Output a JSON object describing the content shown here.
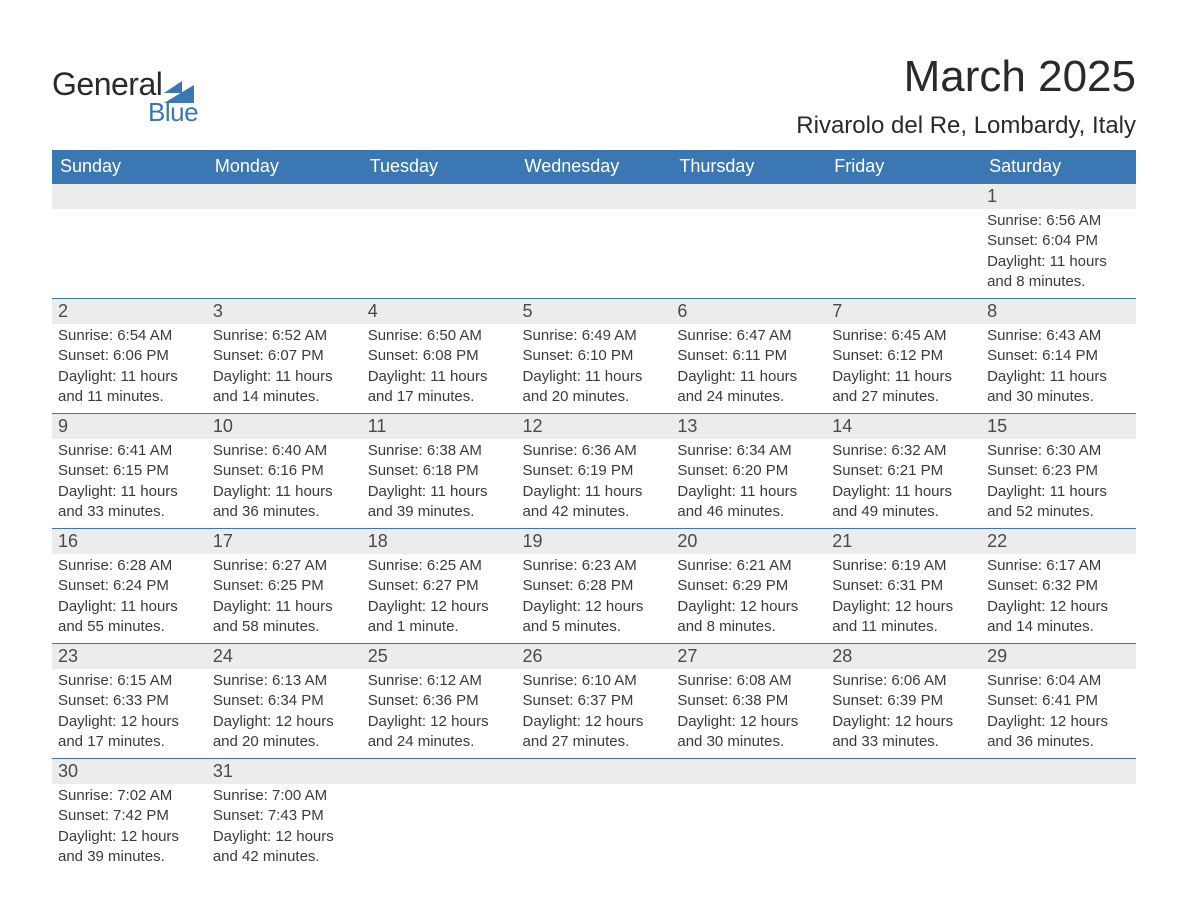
{
  "brand": {
    "word1": "General",
    "word2": "Blue",
    "tri_color": "#3a77b3"
  },
  "title": "March 2025",
  "location": "Rivarolo del Re, Lombardy, Italy",
  "colors": {
    "header_bg": "#3a77b3",
    "header_text": "#ffffff",
    "daynum_bg": "#ececec",
    "row_divider": "#3a77b3",
    "text": "#3a3a3a",
    "page_bg": "#ffffff"
  },
  "fonts": {
    "month_title_pt": 44,
    "location_pt": 24,
    "weekday_pt": 18,
    "daynum_pt": 18,
    "cell_pt": 15,
    "family": "Arial"
  },
  "weekdays": [
    "Sunday",
    "Monday",
    "Tuesday",
    "Wednesday",
    "Thursday",
    "Friday",
    "Saturday"
  ],
  "weeks": [
    [
      null,
      null,
      null,
      null,
      null,
      null,
      {
        "n": "1",
        "sunrise": "Sunrise: 6:56 AM",
        "sunset": "Sunset: 6:04 PM",
        "daylight": "Daylight: 11 hours and 8 minutes."
      }
    ],
    [
      {
        "n": "2",
        "sunrise": "Sunrise: 6:54 AM",
        "sunset": "Sunset: 6:06 PM",
        "daylight": "Daylight: 11 hours and 11 minutes."
      },
      {
        "n": "3",
        "sunrise": "Sunrise: 6:52 AM",
        "sunset": "Sunset: 6:07 PM",
        "daylight": "Daylight: 11 hours and 14 minutes."
      },
      {
        "n": "4",
        "sunrise": "Sunrise: 6:50 AM",
        "sunset": "Sunset: 6:08 PM",
        "daylight": "Daylight: 11 hours and 17 minutes."
      },
      {
        "n": "5",
        "sunrise": "Sunrise: 6:49 AM",
        "sunset": "Sunset: 6:10 PM",
        "daylight": "Daylight: 11 hours and 20 minutes."
      },
      {
        "n": "6",
        "sunrise": "Sunrise: 6:47 AM",
        "sunset": "Sunset: 6:11 PM",
        "daylight": "Daylight: 11 hours and 24 minutes."
      },
      {
        "n": "7",
        "sunrise": "Sunrise: 6:45 AM",
        "sunset": "Sunset: 6:12 PM",
        "daylight": "Daylight: 11 hours and 27 minutes."
      },
      {
        "n": "8",
        "sunrise": "Sunrise: 6:43 AM",
        "sunset": "Sunset: 6:14 PM",
        "daylight": "Daylight: 11 hours and 30 minutes."
      }
    ],
    [
      {
        "n": "9",
        "sunrise": "Sunrise: 6:41 AM",
        "sunset": "Sunset: 6:15 PM",
        "daylight": "Daylight: 11 hours and 33 minutes."
      },
      {
        "n": "10",
        "sunrise": "Sunrise: 6:40 AM",
        "sunset": "Sunset: 6:16 PM",
        "daylight": "Daylight: 11 hours and 36 minutes."
      },
      {
        "n": "11",
        "sunrise": "Sunrise: 6:38 AM",
        "sunset": "Sunset: 6:18 PM",
        "daylight": "Daylight: 11 hours and 39 minutes."
      },
      {
        "n": "12",
        "sunrise": "Sunrise: 6:36 AM",
        "sunset": "Sunset: 6:19 PM",
        "daylight": "Daylight: 11 hours and 42 minutes."
      },
      {
        "n": "13",
        "sunrise": "Sunrise: 6:34 AM",
        "sunset": "Sunset: 6:20 PM",
        "daylight": "Daylight: 11 hours and 46 minutes."
      },
      {
        "n": "14",
        "sunrise": "Sunrise: 6:32 AM",
        "sunset": "Sunset: 6:21 PM",
        "daylight": "Daylight: 11 hours and 49 minutes."
      },
      {
        "n": "15",
        "sunrise": "Sunrise: 6:30 AM",
        "sunset": "Sunset: 6:23 PM",
        "daylight": "Daylight: 11 hours and 52 minutes."
      }
    ],
    [
      {
        "n": "16",
        "sunrise": "Sunrise: 6:28 AM",
        "sunset": "Sunset: 6:24 PM",
        "daylight": "Daylight: 11 hours and 55 minutes."
      },
      {
        "n": "17",
        "sunrise": "Sunrise: 6:27 AM",
        "sunset": "Sunset: 6:25 PM",
        "daylight": "Daylight: 11 hours and 58 minutes."
      },
      {
        "n": "18",
        "sunrise": "Sunrise: 6:25 AM",
        "sunset": "Sunset: 6:27 PM",
        "daylight": "Daylight: 12 hours and 1 minute."
      },
      {
        "n": "19",
        "sunrise": "Sunrise: 6:23 AM",
        "sunset": "Sunset: 6:28 PM",
        "daylight": "Daylight: 12 hours and 5 minutes."
      },
      {
        "n": "20",
        "sunrise": "Sunrise: 6:21 AM",
        "sunset": "Sunset: 6:29 PM",
        "daylight": "Daylight: 12 hours and 8 minutes."
      },
      {
        "n": "21",
        "sunrise": "Sunrise: 6:19 AM",
        "sunset": "Sunset: 6:31 PM",
        "daylight": "Daylight: 12 hours and 11 minutes."
      },
      {
        "n": "22",
        "sunrise": "Sunrise: 6:17 AM",
        "sunset": "Sunset: 6:32 PM",
        "daylight": "Daylight: 12 hours and 14 minutes."
      }
    ],
    [
      {
        "n": "23",
        "sunrise": "Sunrise: 6:15 AM",
        "sunset": "Sunset: 6:33 PM",
        "daylight": "Daylight: 12 hours and 17 minutes."
      },
      {
        "n": "24",
        "sunrise": "Sunrise: 6:13 AM",
        "sunset": "Sunset: 6:34 PM",
        "daylight": "Daylight: 12 hours and 20 minutes."
      },
      {
        "n": "25",
        "sunrise": "Sunrise: 6:12 AM",
        "sunset": "Sunset: 6:36 PM",
        "daylight": "Daylight: 12 hours and 24 minutes."
      },
      {
        "n": "26",
        "sunrise": "Sunrise: 6:10 AM",
        "sunset": "Sunset: 6:37 PM",
        "daylight": "Daylight: 12 hours and 27 minutes."
      },
      {
        "n": "27",
        "sunrise": "Sunrise: 6:08 AM",
        "sunset": "Sunset: 6:38 PM",
        "daylight": "Daylight: 12 hours and 30 minutes."
      },
      {
        "n": "28",
        "sunrise": "Sunrise: 6:06 AM",
        "sunset": "Sunset: 6:39 PM",
        "daylight": "Daylight: 12 hours and 33 minutes."
      },
      {
        "n": "29",
        "sunrise": "Sunrise: 6:04 AM",
        "sunset": "Sunset: 6:41 PM",
        "daylight": "Daylight: 12 hours and 36 minutes."
      }
    ],
    [
      {
        "n": "30",
        "sunrise": "Sunrise: 7:02 AM",
        "sunset": "Sunset: 7:42 PM",
        "daylight": "Daylight: 12 hours and 39 minutes."
      },
      {
        "n": "31",
        "sunrise": "Sunrise: 7:00 AM",
        "sunset": "Sunset: 7:43 PM",
        "daylight": "Daylight: 12 hours and 42 minutes."
      },
      null,
      null,
      null,
      null,
      null
    ]
  ]
}
